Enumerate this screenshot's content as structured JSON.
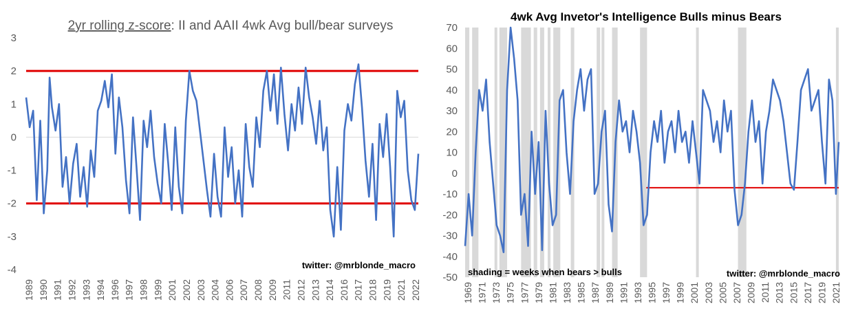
{
  "chart_data": [
    {
      "type": "line",
      "title_underlined": "2yr rolling z-score",
      "title_rest": ": II and AAII 4wk Avg bull/bear surveys",
      "ylim": [
        -4,
        3
      ],
      "yticks": [
        3,
        2,
        1,
        0,
        -1,
        -2,
        -3,
        -4
      ],
      "xlim": [
        1989,
        2022.4
      ],
      "xticks": [
        "1989",
        "1990",
        "1991",
        "1992",
        "1993",
        "1994",
        "1996",
        "1997",
        "1998",
        "1999",
        "2001",
        "2002",
        "2003",
        "2004",
        "2006",
        "2007",
        "2008",
        "2009",
        "2011",
        "2012",
        "2013",
        "2014",
        "2016",
        "2017",
        "2018",
        "2019",
        "2021",
        "2022"
      ],
      "reference_lines": [
        2,
        -2
      ],
      "reference_color": "#e00000",
      "line_color": "#4472c4",
      "zero_line": true,
      "credit": "twitter: @mrblonde_macro",
      "series": [
        {
          "x": [
            1989.0,
            1989.3,
            1989.6,
            1989.9,
            1990.2,
            1990.5,
            1990.8,
            1991.0,
            1991.2,
            1991.5,
            1991.8,
            1992.1,
            1992.4,
            1992.7,
            1993.0,
            1993.3,
            1993.6,
            1993.9,
            1994.2,
            1994.5,
            1994.8,
            1995.1,
            1995.4,
            1995.7,
            1996.0,
            1996.3,
            1996.6,
            1996.9,
            1997.2,
            1997.5,
            1997.8,
            1998.1,
            1998.4,
            1998.7,
            1999.0,
            1999.3,
            1999.6,
            1999.9,
            2000.2,
            2000.5,
            2000.8,
            2001.1,
            2001.4,
            2001.7,
            2002.0,
            2002.3,
            2002.6,
            2002.9,
            2003.2,
            2003.5,
            2003.8,
            2004.1,
            2004.4,
            2004.7,
            2005.0,
            2005.3,
            2005.6,
            2005.9,
            2006.2,
            2006.5,
            2006.8,
            2007.1,
            2007.4,
            2007.7,
            2008.0,
            2008.3,
            2008.6,
            2008.9,
            2009.2,
            2009.5,
            2009.8,
            2010.1,
            2010.4,
            2010.7,
            2011.0,
            2011.3,
            2011.6,
            2011.9,
            2012.2,
            2012.5,
            2012.8,
            2013.1,
            2013.4,
            2013.7,
            2014.0,
            2014.3,
            2014.6,
            2014.9,
            2015.2,
            2015.5,
            2015.8,
            2016.1,
            2016.4,
            2016.7,
            2017.0,
            2017.3,
            2017.6,
            2017.9,
            2018.2,
            2018.5,
            2018.8,
            2019.1,
            2019.4,
            2019.7,
            2020.0,
            2020.3,
            2020.6,
            2020.9,
            2021.2,
            2021.5,
            2021.8,
            2022.1,
            2022.4
          ],
          "values": [
            1.2,
            0.3,
            0.8,
            -1.9,
            0.5,
            -2.3,
            -1.0,
            1.8,
            0.9,
            0.2,
            1.0,
            -1.5,
            -0.6,
            -2.0,
            -0.8,
            -0.2,
            -1.8,
            -0.9,
            -2.1,
            -0.4,
            -1.2,
            0.8,
            1.1,
            1.7,
            0.9,
            1.9,
            -0.5,
            1.2,
            0.3,
            -1.3,
            -2.3,
            0.6,
            -0.9,
            -2.5,
            0.5,
            -0.3,
            0.8,
            -0.6,
            -1.4,
            -2.0,
            0.4,
            -0.8,
            -2.2,
            0.3,
            -1.5,
            -2.3,
            0.5,
            2.0,
            1.4,
            1.1,
            0.2,
            -0.7,
            -1.6,
            -2.4,
            -0.5,
            -1.8,
            -2.4,
            0.3,
            -1.2,
            -0.3,
            -2.0,
            -1.0,
            -2.4,
            0.4,
            -0.9,
            -1.5,
            0.6,
            -0.3,
            1.4,
            2.0,
            0.8,
            1.9,
            0.4,
            2.1,
            0.7,
            -0.4,
            1.0,
            0.2,
            1.5,
            0.4,
            2.1,
            1.2,
            0.6,
            -0.2,
            1.1,
            -0.4,
            0.3,
            -2.2,
            -3.0,
            -0.9,
            -2.8,
            0.2,
            1.0,
            0.5,
            1.6,
            2.2,
            0.9,
            -0.7,
            -1.8,
            -0.2,
            -2.5,
            0.4,
            -0.6,
            0.7,
            -0.9,
            -3.0,
            1.4,
            0.6,
            1.1,
            -1.0,
            -1.9,
            -2.2,
            -0.5
          ]
        }
      ]
    },
    {
      "type": "line",
      "title": "4wk Avg Invetor's Intelligence Bulls minus Bears",
      "ylim": [
        -50,
        70
      ],
      "yticks": [
        70,
        60,
        50,
        40,
        30,
        20,
        10,
        0,
        -10,
        -20,
        -30,
        -40,
        -50
      ],
      "xlim": [
        1969,
        2022.4
      ],
      "xticks": [
        "1969",
        "1971",
        "1973",
        "1975",
        "1977",
        "1979",
        "1981",
        "1983",
        "1985",
        "1987",
        "1989",
        "1991",
        "1993",
        "1995",
        "1997",
        "1999",
        "2001",
        "2003",
        "2005",
        "2007",
        "2009",
        "2011",
        "2013",
        "2015",
        "2017",
        "2019",
        "2021"
      ],
      "shading_note": "shading = weeks when bears > bulls",
      "shading_color": "#d9d9d9",
      "shaded_periods": [
        [
          1969.0,
          1969.6
        ],
        [
          1970.0,
          1970.9
        ],
        [
          1973.2,
          1973.6
        ],
        [
          1973.9,
          1975.0
        ],
        [
          1977.0,
          1978.4
        ],
        [
          1978.8,
          1979.3
        ],
        [
          1979.7,
          1980.3
        ],
        [
          1980.8,
          1981.2
        ],
        [
          1981.6,
          1982.6
        ],
        [
          1984.1,
          1984.6
        ],
        [
          1987.8,
          1988.3
        ],
        [
          1988.5,
          1988.9
        ],
        [
          1990.0,
          1990.8
        ],
        [
          1994.0,
          1995.0
        ],
        [
          2002.0,
          2002.4
        ],
        [
          2008.0,
          2009.2
        ],
        [
          2022.0,
          2022.4
        ]
      ],
      "reference_line": -7,
      "reference_from": 1994.9,
      "reference_color": "#e00000",
      "line_color": "#4472c4",
      "credit": "twitter: @mrblonde_macro",
      "series": [
        {
          "x": [
            1969.0,
            1969.5,
            1970.0,
            1970.5,
            1971.0,
            1971.5,
            1972.0,
            1972.5,
            1973.0,
            1973.5,
            1974.0,
            1974.5,
            1975.0,
            1975.5,
            1976.0,
            1976.5,
            1977.0,
            1977.5,
            1978.0,
            1978.5,
            1979.0,
            1979.5,
            1980.0,
            1980.5,
            1981.0,
            1981.5,
            1982.0,
            1982.5,
            1983.0,
            1983.5,
            1984.0,
            1984.5,
            1985.0,
            1985.5,
            1986.0,
            1986.5,
            1987.0,
            1987.5,
            1988.0,
            1988.5,
            1989.0,
            1989.5,
            1990.0,
            1990.5,
            1991.0,
            1991.5,
            1992.0,
            1992.5,
            1993.0,
            1993.5,
            1994.0,
            1994.5,
            1995.0,
            1995.5,
            1996.0,
            1996.5,
            1997.0,
            1997.5,
            1998.0,
            1998.5,
            1999.0,
            1999.5,
            2000.0,
            2000.5,
            2001.0,
            2001.5,
            2002.0,
            2002.5,
            2003.0,
            2003.5,
            2004.0,
            2004.5,
            2005.0,
            2005.5,
            2006.0,
            2006.5,
            2007.0,
            2007.5,
            2008.0,
            2008.5,
            2009.0,
            2009.5,
            2010.0,
            2010.5,
            2011.0,
            2011.5,
            2012.0,
            2012.5,
            2013.0,
            2013.5,
            2014.0,
            2014.5,
            2015.0,
            2015.5,
            2016.0,
            2016.5,
            2017.0,
            2017.5,
            2018.0,
            2018.5,
            2019.0,
            2019.5,
            2020.0,
            2020.5,
            2021.0,
            2021.5,
            2022.0,
            2022.4
          ],
          "values": [
            -35,
            -10,
            -30,
            10,
            40,
            30,
            45,
            15,
            -5,
            -25,
            -30,
            -38,
            40,
            70,
            55,
            35,
            -20,
            -10,
            -35,
            20,
            -10,
            15,
            -37,
            30,
            -5,
            -25,
            -20,
            35,
            40,
            10,
            -10,
            25,
            40,
            50,
            30,
            45,
            50,
            -10,
            -5,
            20,
            30,
            -15,
            -28,
            15,
            35,
            20,
            25,
            10,
            30,
            20,
            5,
            -25,
            -20,
            10,
            25,
            15,
            30,
            5,
            20,
            25,
            10,
            30,
            15,
            20,
            5,
            25,
            10,
            -5,
            40,
            35,
            30,
            15,
            25,
            10,
            35,
            20,
            30,
            -8,
            -25,
            -20,
            -5,
            20,
            35,
            15,
            25,
            -5,
            20,
            30,
            45,
            40,
            35,
            25,
            10,
            -5,
            -8,
            15,
            40,
            45,
            50,
            30,
            35,
            40,
            15,
            -5,
            45,
            35,
            -10,
            15
          ]
        }
      ]
    }
  ]
}
